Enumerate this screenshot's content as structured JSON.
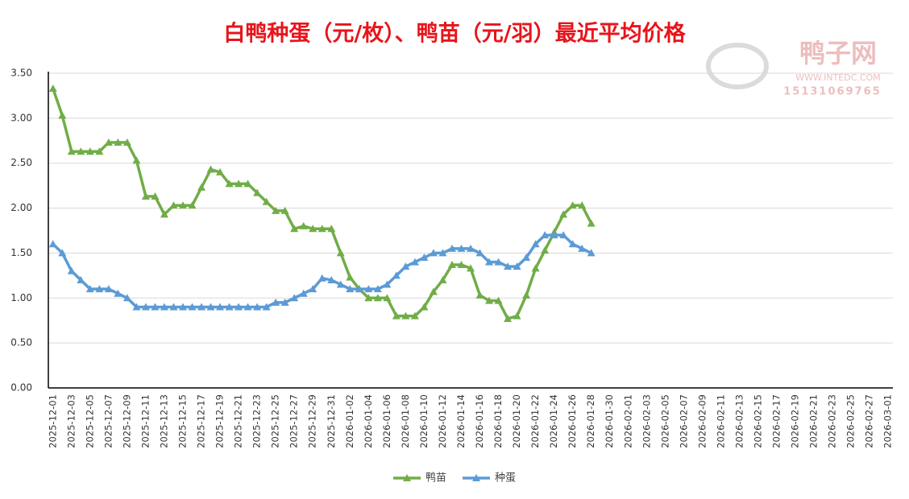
{
  "chart_data": {
    "type": "line",
    "title": "白鸭种蛋（元/枚）、鸭苗（元/羽）最近平均价格",
    "watermark": {
      "name": "鸭子网",
      "site": "WWW.INTEDC.COM",
      "phone": "15131069765"
    },
    "categories": [
      "2025-12-01",
      null,
      "2025-12-03",
      null,
      "2025-12-05",
      null,
      "2025-12-07",
      null,
      "2025-12-09",
      null,
      "2025-12-11",
      null,
      "2025-12-13",
      null,
      "2025-12-15",
      null,
      "2025-12-17",
      null,
      "2025-12-19",
      null,
      "2025-12-21",
      null,
      "2025-12-23",
      null,
      "2025-12-25",
      null,
      "2025-12-27",
      null,
      "2025-12-29",
      null,
      "2025-12-31",
      null,
      "2026-01-02",
      null,
      "2026-01-04",
      null,
      "2026-01-06",
      null,
      "2026-01-08",
      null,
      "2026-01-10",
      null,
      "2026-01-12",
      null,
      "2026-01-14",
      null,
      "2026-01-16",
      null,
      "2026-01-18",
      null,
      "2026-01-20",
      null,
      "2026-01-22",
      null,
      "2026-01-24",
      null,
      "2026-01-26",
      null,
      "2026-01-28",
      null,
      "2026-01-30",
      null,
      "2026-02-01",
      null,
      "2026-02-03",
      null,
      "2026-02-05",
      null,
      "2026-02-07",
      null,
      "2026-02-09",
      null,
      "2026-02-11",
      null,
      "2026-02-13",
      null,
      "2026-02-15",
      null,
      "2026-02-17",
      null,
      "2026-02-19",
      null,
      "2026-02-21",
      null,
      "2026-02-23",
      null,
      "2026-02-25",
      null,
      "2026-02-27",
      null,
      "2026-03-01"
    ],
    "series": [
      {
        "name": "鸭苗",
        "color": "#70ad47",
        "values": [
          3.33,
          3.03,
          2.63,
          2.63,
          2.63,
          2.63,
          2.73,
          2.73,
          2.73,
          2.53,
          2.13,
          2.13,
          1.93,
          2.03,
          2.03,
          2.03,
          2.23,
          2.43,
          2.4,
          2.27,
          2.27,
          2.27,
          2.17,
          2.07,
          1.97,
          1.97,
          1.77,
          1.8,
          1.77,
          1.77,
          1.77,
          1.5,
          1.23,
          1.1,
          1.0,
          1.0,
          1.0,
          0.8,
          0.8,
          0.8,
          0.9,
          1.07,
          1.2,
          1.37,
          1.37,
          1.33,
          1.03,
          0.97,
          0.97,
          0.77,
          0.8,
          1.03,
          1.33,
          1.53,
          1.73,
          1.93,
          2.03,
          2.03,
          1.83,
          null,
          null,
          null,
          null,
          null,
          null,
          null,
          null,
          null,
          null,
          null,
          null,
          null,
          null,
          null,
          null,
          null,
          null,
          null,
          null,
          null,
          null,
          null,
          null,
          null,
          null,
          null,
          null,
          null,
          null,
          null,
          null
        ]
      },
      {
        "name": "种蛋",
        "color": "#5b9bd5",
        "values": [
          1.6,
          1.5,
          1.3,
          1.2,
          1.1,
          1.1,
          1.1,
          1.05,
          1.0,
          0.9,
          0.9,
          0.9,
          0.9,
          0.9,
          0.9,
          0.9,
          0.9,
          0.9,
          0.9,
          0.9,
          0.9,
          0.9,
          0.9,
          0.9,
          0.95,
          0.95,
          1.0,
          1.05,
          1.1,
          1.22,
          1.2,
          1.15,
          1.1,
          1.1,
          1.1,
          1.1,
          1.15,
          1.25,
          1.35,
          1.4,
          1.45,
          1.5,
          1.5,
          1.55,
          1.55,
          1.55,
          1.5,
          1.4,
          1.4,
          1.35,
          1.35,
          1.45,
          1.6,
          1.7,
          1.7,
          1.7,
          1.6,
          1.55,
          1.5,
          null,
          null,
          null,
          null,
          null,
          null,
          null,
          null,
          null,
          null,
          null,
          null,
          null,
          null,
          null,
          null,
          null,
          null,
          null,
          null,
          null,
          null,
          null,
          null,
          null,
          null,
          null,
          null,
          null,
          null,
          null,
          null
        ]
      }
    ],
    "ylim": [
      0,
      3.5
    ],
    "yticks": [
      {
        "value": 0,
        "label": "0.00"
      },
      {
        "value": 0.5,
        "label": "0.50"
      },
      {
        "value": 1,
        "label": "1.00"
      },
      {
        "value": 1.5,
        "label": "1.50"
      },
      {
        "value": 2,
        "label": "2.00"
      },
      {
        "value": 2.5,
        "label": "2.50"
      },
      {
        "value": 3,
        "label": "3.00"
      },
      {
        "value": 3.5,
        "label": "3.50"
      }
    ],
    "grid": true,
    "legend": "bottom"
  }
}
